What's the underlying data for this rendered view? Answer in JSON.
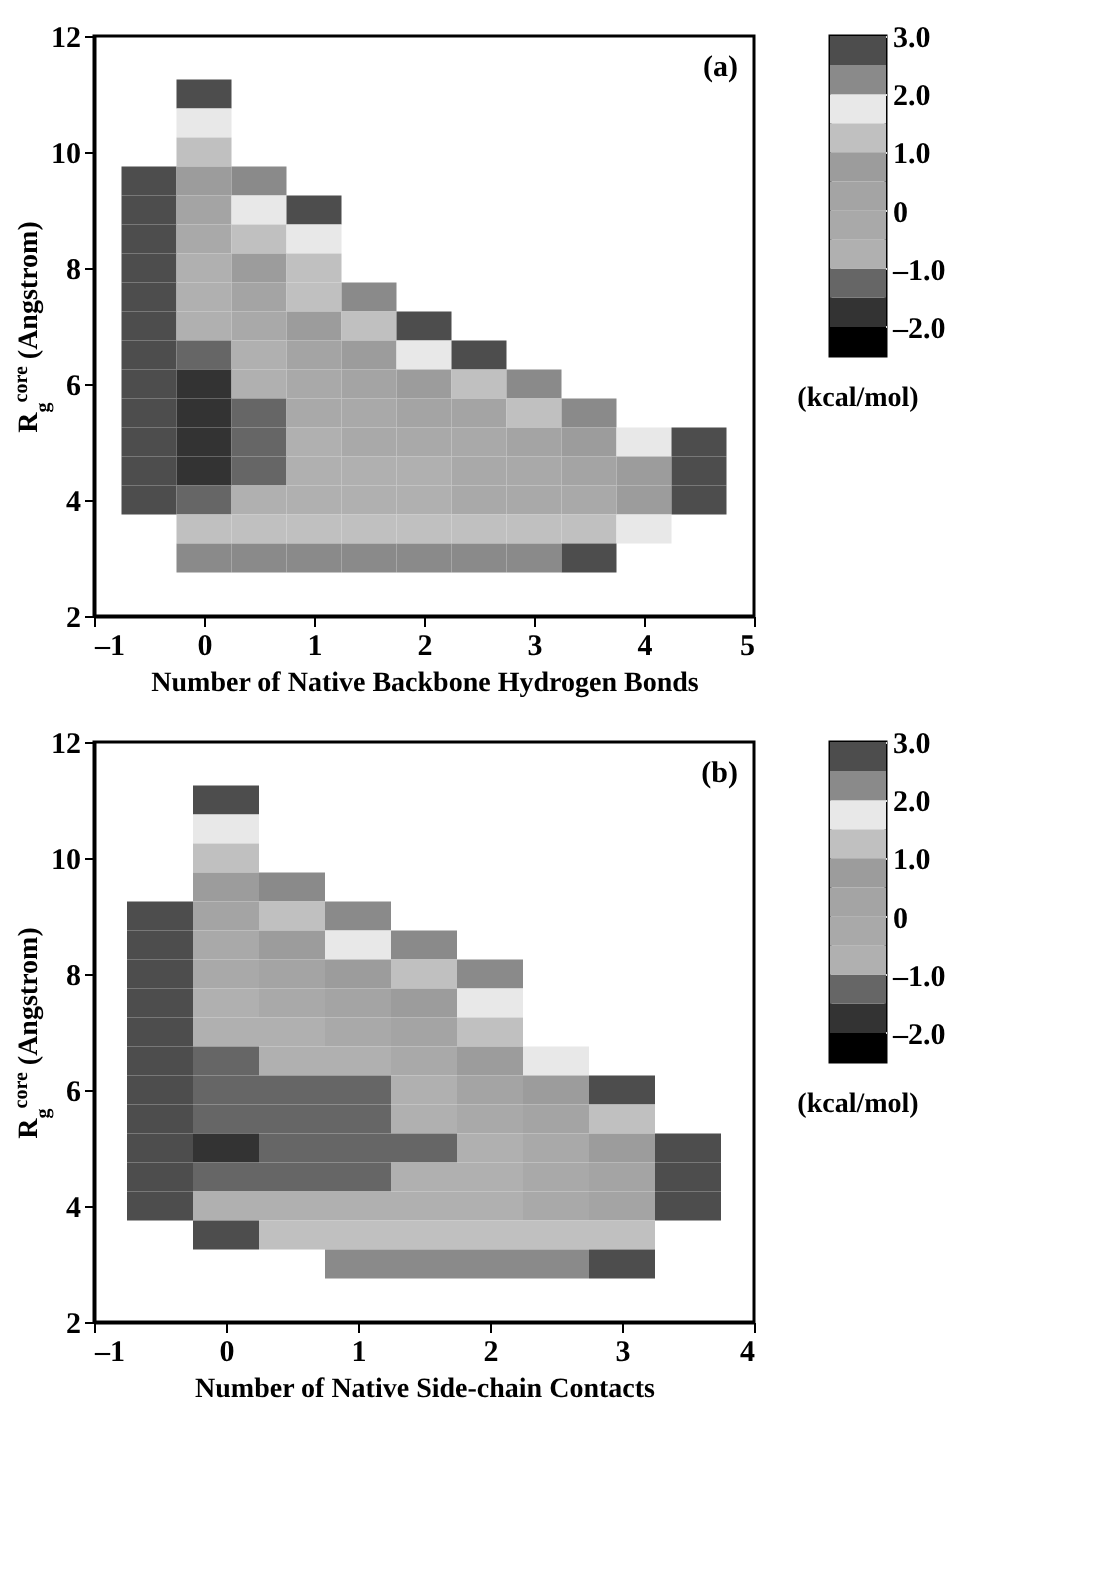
{
  "chart_data": [
    {
      "type": "heatmap",
      "xlabel": "Number of Native Backbone Hydrogen Bonds",
      "ylabel": "R$_{g}$$^{core}$ (Angstrom)",
      "clabel": "(kcal/mol)",
      "annotations": [
        "(a)"
      ],
      "x": [
        -0.5,
        0,
        0.5,
        1,
        1.5,
        2,
        2.5,
        3,
        3.5,
        4,
        4.5
      ],
      "y": [
        11,
        10.5,
        10,
        9.5,
        9,
        8.5,
        8,
        7.5,
        7,
        6.5,
        6,
        5.5,
        5,
        4.5,
        4,
        3.5,
        3
      ],
      "cells": [
        [
          null,
          2.75,
          null,
          null,
          null,
          null,
          null,
          null,
          null,
          null,
          null
        ],
        [
          null,
          1.75,
          null,
          null,
          null,
          null,
          null,
          null,
          null,
          null,
          null
        ],
        [
          null,
          1.25,
          null,
          null,
          null,
          null,
          null,
          null,
          null,
          null,
          null
        ],
        [
          2.75,
          0.75,
          2.25,
          null,
          null,
          null,
          null,
          null,
          null,
          null,
          null
        ],
        [
          2.75,
          0.25,
          1.75,
          2.75,
          null,
          null,
          null,
          null,
          null,
          null,
          null
        ],
        [
          2.75,
          -0.25,
          1.25,
          1.75,
          null,
          null,
          null,
          null,
          null,
          null,
          null
        ],
        [
          2.75,
          -0.75,
          0.75,
          1.25,
          null,
          null,
          null,
          null,
          null,
          null,
          null
        ],
        [
          2.75,
          -0.75,
          0.25,
          1.25,
          2.25,
          null,
          null,
          null,
          null,
          null,
          null
        ],
        [
          2.75,
          -0.75,
          -0.25,
          0.75,
          1.25,
          2.75,
          null,
          null,
          null,
          null,
          null
        ],
        [
          2.75,
          -1.25,
          -0.75,
          0.25,
          0.75,
          1.75,
          2.75,
          null,
          null,
          null,
          null
        ],
        [
          2.75,
          -1.75,
          -0.75,
          -0.25,
          0.25,
          0.75,
          1.25,
          2.25,
          null,
          null,
          null
        ],
        [
          2.75,
          -1.75,
          -1.25,
          -0.25,
          -0.25,
          0.25,
          0.25,
          1.25,
          2.25,
          null,
          null
        ],
        [
          2.75,
          -1.75,
          -1.25,
          -0.75,
          -0.25,
          -0.25,
          -0.25,
          0.25,
          0.75,
          1.75,
          2.75
        ],
        [
          2.75,
          -1.75,
          -1.25,
          -0.75,
          -0.75,
          -0.75,
          -0.25,
          -0.25,
          0.25,
          0.75,
          2.75
        ],
        [
          2.75,
          -1.25,
          -0.75,
          -0.75,
          -0.75,
          -0.75,
          -0.25,
          -0.25,
          -0.25,
          0.75,
          2.75
        ],
        [
          null,
          1.25,
          1.25,
          1.25,
          1.25,
          1.25,
          1.25,
          1.25,
          1.25,
          1.75,
          null
        ],
        [
          null,
          2.25,
          2.25,
          2.25,
          2.25,
          2.25,
          2.25,
          2.25,
          2.75,
          null,
          null
        ]
      ],
      "xlim": [
        -1,
        5
      ],
      "xticks": [
        {
          "value": -1,
          "label": "–1"
        },
        0,
        1,
        2,
        3,
        4,
        5
      ],
      "ylim": [
        2,
        12
      ],
      "yticks": [
        2,
        4,
        6,
        8,
        10,
        12
      ],
      "clim": [
        -2.5,
        3
      ],
      "cticks": [
        {
          "value": -2,
          "label": "–2.0"
        },
        {
          "value": -1,
          "label": "–1.0"
        },
        0,
        {
          "value": 1,
          "label": "1.0"
        },
        {
          "value": 2,
          "label": "2.0"
        },
        {
          "value": 3,
          "label": "3.0"
        }
      ],
      "colors": [
        "#000000",
        "#333333",
        "#666666",
        "#b0b0b0",
        "#a9a9a9",
        "#a4a4a4",
        "#9c9c9c",
        "#c0c0c0",
        "#e8e8e8",
        "#8a8a8a",
        "#4d4d4d"
      ]
    },
    {
      "type": "heatmap",
      "xlabel": "Number of Native Side-chain Contacts",
      "ylabel": "R$_{g}$$^{core}$ (Angstrom)",
      "clabel": "(kcal/mol)",
      "annotations": [
        "(b)"
      ],
      "x": [
        -0.5,
        0,
        0.5,
        1,
        1.5,
        2,
        2.5,
        3,
        3.5
      ],
      "y": [
        11,
        10.5,
        10,
        9.5,
        9,
        8.5,
        8,
        7.5,
        7,
        6.5,
        6,
        5.5,
        5,
        4.5,
        4,
        3.5,
        3
      ],
      "cells": [
        [
          null,
          2.75,
          null,
          null,
          null,
          null,
          null,
          null,
          null
        ],
        [
          null,
          1.75,
          null,
          null,
          null,
          null,
          null,
          null,
          null
        ],
        [
          null,
          1.25,
          null,
          null,
          null,
          null,
          null,
          null,
          null
        ],
        [
          null,
          0.75,
          2.25,
          null,
          null,
          null,
          null,
          null,
          null
        ],
        [
          2.75,
          0.25,
          1.25,
          2.25,
          null,
          null,
          null,
          null,
          null
        ],
        [
          2.75,
          -0.25,
          0.75,
          1.75,
          2.25,
          null,
          null,
          null,
          null
        ],
        [
          2.75,
          -0.25,
          0.25,
          0.75,
          1.25,
          2.25,
          null,
          null,
          null
        ],
        [
          2.75,
          -0.75,
          -0.25,
          0.25,
          0.75,
          1.75,
          null,
          null,
          null
        ],
        [
          2.75,
          -0.75,
          -0.75,
          -0.25,
          0.25,
          1.25,
          null,
          null,
          null
        ],
        [
          2.75,
          -1.25,
          -0.75,
          -0.75,
          -0.25,
          0.75,
          1.75,
          null,
          null
        ],
        [
          2.75,
          -1.25,
          -1.25,
          -1.25,
          -0.75,
          0.25,
          0.75,
          2.75,
          null
        ],
        [
          2.75,
          -1.25,
          -1.25,
          -1.25,
          -0.75,
          -0.25,
          0.25,
          1.25,
          null
        ],
        [
          2.75,
          -1.75,
          -1.25,
          -1.25,
          -1.25,
          -0.75,
          -0.25,
          0.75,
          2.75
        ],
        [
          2.75,
          -1.25,
          -1.25,
          -1.25,
          -0.75,
          -0.75,
          -0.25,
          0.25,
          2.75
        ],
        [
          2.75,
          -0.75,
          -0.75,
          -0.75,
          -0.75,
          -0.75,
          -0.25,
          0.25,
          2.75
        ],
        [
          null,
          2.75,
          1.25,
          1.25,
          1.25,
          1.25,
          1.25,
          1.25,
          null
        ],
        [
          null,
          null,
          null,
          2.25,
          2.25,
          2.25,
          2.25,
          2.75,
          null
        ]
      ],
      "xlim": [
        -1,
        4
      ],
      "xticks": [
        {
          "value": -1,
          "label": "–1"
        },
        0,
        1,
        2,
        3,
        4
      ],
      "ylim": [
        2,
        12
      ],
      "yticks": [
        2,
        4,
        6,
        8,
        10,
        12
      ],
      "clim": [
        -2.5,
        3
      ],
      "cticks": [
        {
          "value": -2,
          "label": "–2.0"
        },
        {
          "value": -1,
          "label": "–1.0"
        },
        0,
        {
          "value": 1,
          "label": "1.0"
        },
        {
          "value": 2,
          "label": "2.0"
        },
        {
          "value": 3,
          "label": "3.0"
        }
      ],
      "colors": [
        "#000000",
        "#333333",
        "#666666",
        "#b0b0b0",
        "#a9a9a9",
        "#a4a4a4",
        "#9c9c9c",
        "#c0c0c0",
        "#e8e8e8",
        "#8a8a8a",
        "#4d4d4d"
      ]
    }
  ]
}
